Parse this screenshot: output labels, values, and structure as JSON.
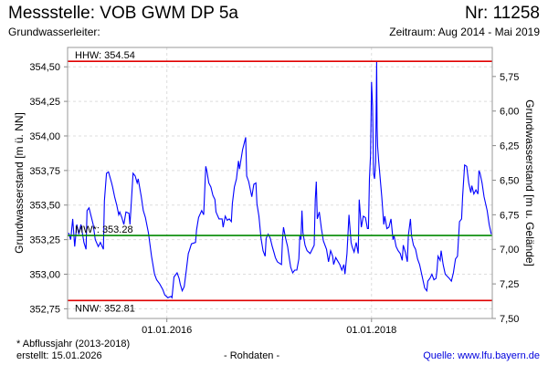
{
  "header": {
    "title": "Messstelle: VOB GWM DP 5a",
    "number": "Nr: 11258",
    "aquifer": "Grundwasserleiter:",
    "period": "Zeitraum: Aug 2014 - Mai 2019"
  },
  "footer": {
    "footnote": "* Abflussjahr (2013-2018)",
    "created": "erstellt:  15.01.2026",
    "raw": "- Rohdaten -",
    "source": "Quelle: www.lfu.bayern.de"
  },
  "chart_data": {
    "type": "line",
    "ylabel": "Grundwasserstand [m ü. NN]",
    "y2label": "Grundwasserstand [m u. Gelände]",
    "xlim": [
      2015.03,
      2019.18
    ],
    "ylim": [
      352.68,
      354.64
    ],
    "ground_level": 360.18,
    "x_ticks": [
      {
        "value": 2016.0,
        "label": "01.01.2016"
      },
      {
        "value": 2018.0,
        "label": "01.01.2018"
      }
    ],
    "y_ticks": [
      {
        "value": 352.75,
        "label": "352,75"
      },
      {
        "value": 353.0,
        "label": "353,00"
      },
      {
        "value": 353.25,
        "label": "353,25"
      },
      {
        "value": 353.5,
        "label": "353,50"
      },
      {
        "value": 353.75,
        "label": "353,75"
      },
      {
        "value": 354.0,
        "label": "354,00"
      },
      {
        "value": 354.25,
        "label": "354,25"
      },
      {
        "value": 354.5,
        "label": "354,50"
      }
    ],
    "y2_ticks": [
      {
        "value": 5.75,
        "label": "5,75"
      },
      {
        "value": 6.0,
        "label": "6,00"
      },
      {
        "value": 6.25,
        "label": "6,25"
      },
      {
        "value": 6.5,
        "label": "6,50"
      },
      {
        "value": 6.75,
        "label": "6,75"
      },
      {
        "value": 7.0,
        "label": "7,00"
      },
      {
        "value": 7.25,
        "label": "7,25"
      },
      {
        "value": 7.5,
        "label": "7,50"
      }
    ],
    "reference_lines": [
      {
        "name": "HHW",
        "value": 354.54,
        "label": "HHW: 354.54",
        "color": "#e00000"
      },
      {
        "name": "MW",
        "value": 353.28,
        "label": "MW*: 353.28",
        "color": "#008800"
      },
      {
        "name": "NNW",
        "value": 352.81,
        "label": "NNW: 352.81",
        "color": "#e00000"
      }
    ],
    "series": [
      {
        "name": "Grundwasserstand",
        "color": "#0000ff",
        "points": [
          [
            2015.04,
            353.3
          ],
          [
            2015.06,
            353.25
          ],
          [
            2015.08,
            353.4
          ],
          [
            2015.1,
            353.2
          ],
          [
            2015.12,
            353.36
          ],
          [
            2015.14,
            353.29
          ],
          [
            2015.16,
            353.36
          ],
          [
            2015.19,
            353.23
          ],
          [
            2015.21,
            353.18
          ],
          [
            2015.22,
            353.46
          ],
          [
            2015.24,
            353.48
          ],
          [
            2015.28,
            353.36
          ],
          [
            2015.3,
            353.25
          ],
          [
            2015.33,
            353.2
          ],
          [
            2015.35,
            353.23
          ],
          [
            2015.38,
            353.18
          ],
          [
            2015.39,
            353.53
          ],
          [
            2015.41,
            353.73
          ],
          [
            2015.43,
            353.74
          ],
          [
            2015.46,
            353.66
          ],
          [
            2015.47,
            353.63
          ],
          [
            2015.49,
            353.56
          ],
          [
            2015.51,
            353.5
          ],
          [
            2015.53,
            353.43
          ],
          [
            2015.54,
            353.45
          ],
          [
            2015.56,
            353.41
          ],
          [
            2015.58,
            353.36
          ],
          [
            2015.6,
            353.45
          ],
          [
            2015.63,
            353.44
          ],
          [
            2015.64,
            353.36
          ],
          [
            2015.67,
            353.73
          ],
          [
            2015.69,
            353.71
          ],
          [
            2015.71,
            353.66
          ],
          [
            2015.72,
            353.69
          ],
          [
            2015.75,
            353.56
          ],
          [
            2015.77,
            353.46
          ],
          [
            2015.79,
            353.41
          ],
          [
            2015.82,
            353.3
          ],
          [
            2015.85,
            353.13
          ],
          [
            2015.88,
            353.0
          ],
          [
            2015.9,
            352.96
          ],
          [
            2015.93,
            352.93
          ],
          [
            2015.96,
            352.89
          ],
          [
            2015.98,
            352.85
          ],
          [
            2016.01,
            352.83
          ],
          [
            2016.04,
            352.84
          ],
          [
            2016.05,
            352.83
          ],
          [
            2016.07,
            352.98
          ],
          [
            2016.1,
            353.01
          ],
          [
            2016.12,
            352.97
          ],
          [
            2016.13,
            352.93
          ],
          [
            2016.15,
            352.88
          ],
          [
            2016.17,
            352.91
          ],
          [
            2016.19,
            353.03
          ],
          [
            2016.21,
            353.15
          ],
          [
            2016.22,
            353.17
          ],
          [
            2016.24,
            353.22
          ],
          [
            2016.28,
            353.23
          ],
          [
            2016.29,
            353.32
          ],
          [
            2016.31,
            353.41
          ],
          [
            2016.34,
            353.46
          ],
          [
            2016.36,
            353.43
          ],
          [
            2016.38,
            353.78
          ],
          [
            2016.39,
            353.75
          ],
          [
            2016.41,
            353.66
          ],
          [
            2016.43,
            353.63
          ],
          [
            2016.45,
            353.57
          ],
          [
            2016.47,
            353.54
          ],
          [
            2016.48,
            353.45
          ],
          [
            2016.51,
            353.4
          ],
          [
            2016.54,
            353.4
          ],
          [
            2016.55,
            353.34
          ],
          [
            2016.57,
            353.42
          ],
          [
            2016.59,
            353.39
          ],
          [
            2016.61,
            353.4
          ],
          [
            2016.63,
            353.38
          ],
          [
            2016.64,
            353.51
          ],
          [
            2016.66,
            353.63
          ],
          [
            2016.68,
            353.69
          ],
          [
            2016.7,
            353.82
          ],
          [
            2016.71,
            353.76
          ],
          [
            2016.74,
            353.9
          ],
          [
            2016.77,
            353.99
          ],
          [
            2016.78,
            353.71
          ],
          [
            2016.8,
            353.67
          ],
          [
            2016.83,
            353.56
          ],
          [
            2016.85,
            353.65
          ],
          [
            2016.87,
            353.66
          ],
          [
            2016.88,
            353.51
          ],
          [
            2016.9,
            353.42
          ],
          [
            2016.92,
            353.26
          ],
          [
            2016.94,
            353.17
          ],
          [
            2016.96,
            353.13
          ],
          [
            2016.97,
            353.26
          ],
          [
            2016.99,
            353.29
          ],
          [
            2017.01,
            353.26
          ],
          [
            2017.03,
            353.2
          ],
          [
            2017.05,
            353.15
          ],
          [
            2017.06,
            353.12
          ],
          [
            2017.08,
            353.09
          ],
          [
            2017.1,
            353.08
          ],
          [
            2017.12,
            353.07
          ],
          [
            2017.13,
            353.25
          ],
          [
            2017.14,
            353.34
          ],
          [
            2017.16,
            353.26
          ],
          [
            2017.18,
            353.2
          ],
          [
            2017.2,
            353.1
          ],
          [
            2017.21,
            353.05
          ],
          [
            2017.23,
            353.01
          ],
          [
            2017.25,
            353.03
          ],
          [
            2017.27,
            353.03
          ],
          [
            2017.29,
            353.11
          ],
          [
            2017.3,
            353.28
          ],
          [
            2017.31,
            353.25
          ],
          [
            2017.32,
            353.46
          ],
          [
            2017.33,
            353.3
          ],
          [
            2017.35,
            353.21
          ],
          [
            2017.37,
            353.17
          ],
          [
            2017.4,
            353.15
          ],
          [
            2017.44,
            353.21
          ],
          [
            2017.45,
            353.54
          ],
          [
            2017.46,
            353.67
          ],
          [
            2017.47,
            353.4
          ],
          [
            2017.49,
            353.45
          ],
          [
            2017.51,
            353.33
          ],
          [
            2017.53,
            353.24
          ],
          [
            2017.56,
            353.18
          ],
          [
            2017.58,
            353.09
          ],
          [
            2017.6,
            353.17
          ],
          [
            2017.62,
            353.13
          ],
          [
            2017.63,
            353.07
          ],
          [
            2017.65,
            353.12
          ],
          [
            2017.69,
            353.07
          ],
          [
            2017.71,
            353.03
          ],
          [
            2017.73,
            353.07
          ],
          [
            2017.74,
            353.0
          ],
          [
            2017.76,
            353.15
          ],
          [
            2017.78,
            353.43
          ],
          [
            2017.8,
            353.23
          ],
          [
            2017.81,
            353.2
          ],
          [
            2017.83,
            353.16
          ],
          [
            2017.85,
            353.23
          ],
          [
            2017.87,
            353.15
          ],
          [
            2017.88,
            353.54
          ],
          [
            2017.9,
            353.34
          ],
          [
            2017.92,
            353.42
          ],
          [
            2017.94,
            353.41
          ],
          [
            2017.96,
            353.33
          ],
          [
            2017.97,
            353.33
          ],
          [
            2017.98,
            353.69
          ],
          [
            2017.99,
            353.86
          ],
          [
            2018.0,
            354.39
          ],
          [
            2018.01,
            354.22
          ],
          [
            2018.02,
            353.73
          ],
          [
            2018.03,
            353.69
          ],
          [
            2018.04,
            353.81
          ],
          [
            2018.05,
            354.54
          ],
          [
            2018.055,
            354.06
          ],
          [
            2018.06,
            353.92
          ],
          [
            2018.07,
            353.82
          ],
          [
            2018.1,
            353.56
          ],
          [
            2018.12,
            353.36
          ],
          [
            2018.13,
            353.42
          ],
          [
            2018.15,
            353.33
          ],
          [
            2018.17,
            353.34
          ],
          [
            2018.19,
            353.4
          ],
          [
            2018.21,
            353.25
          ],
          [
            2018.22,
            353.28
          ],
          [
            2018.24,
            353.2
          ],
          [
            2018.26,
            353.17
          ],
          [
            2018.28,
            353.15
          ],
          [
            2018.3,
            353.1
          ],
          [
            2018.31,
            353.21
          ],
          [
            2018.33,
            353.16
          ],
          [
            2018.35,
            353.09
          ],
          [
            2018.36,
            353.28
          ],
          [
            2018.38,
            353.4
          ],
          [
            2018.39,
            353.28
          ],
          [
            2018.41,
            353.21
          ],
          [
            2018.43,
            353.18
          ],
          [
            2018.45,
            353.11
          ],
          [
            2018.47,
            353.07
          ],
          [
            2018.49,
            353.0
          ],
          [
            2018.52,
            352.9
          ],
          [
            2018.54,
            352.88
          ],
          [
            2018.55,
            352.95
          ],
          [
            2018.57,
            352.97
          ],
          [
            2018.59,
            353.0
          ],
          [
            2018.61,
            352.96
          ],
          [
            2018.63,
            352.97
          ],
          [
            2018.64,
            353.03
          ],
          [
            2018.65,
            353.13
          ],
          [
            2018.67,
            353.1
          ],
          [
            2018.68,
            353.17
          ],
          [
            2018.7,
            353.07
          ],
          [
            2018.72,
            353.0
          ],
          [
            2018.76,
            352.97
          ],
          [
            2018.78,
            352.95
          ],
          [
            2018.8,
            353.01
          ],
          [
            2018.82,
            353.11
          ],
          [
            2018.84,
            353.13
          ],
          [
            2018.86,
            353.38
          ],
          [
            2018.88,
            353.4
          ],
          [
            2018.89,
            353.56
          ],
          [
            2018.91,
            353.79
          ],
          [
            2018.93,
            353.78
          ],
          [
            2018.95,
            353.66
          ],
          [
            2018.97,
            353.59
          ],
          [
            2018.98,
            353.64
          ],
          [
            2019.0,
            353.58
          ],
          [
            2019.02,
            353.61
          ],
          [
            2019.04,
            353.58
          ],
          [
            2019.05,
            353.75
          ],
          [
            2019.06,
            353.73
          ],
          [
            2019.08,
            353.66
          ],
          [
            2019.1,
            353.56
          ],
          [
            2019.13,
            353.46
          ],
          [
            2019.15,
            353.36
          ],
          [
            2019.17,
            353.29
          ]
        ]
      }
    ]
  }
}
